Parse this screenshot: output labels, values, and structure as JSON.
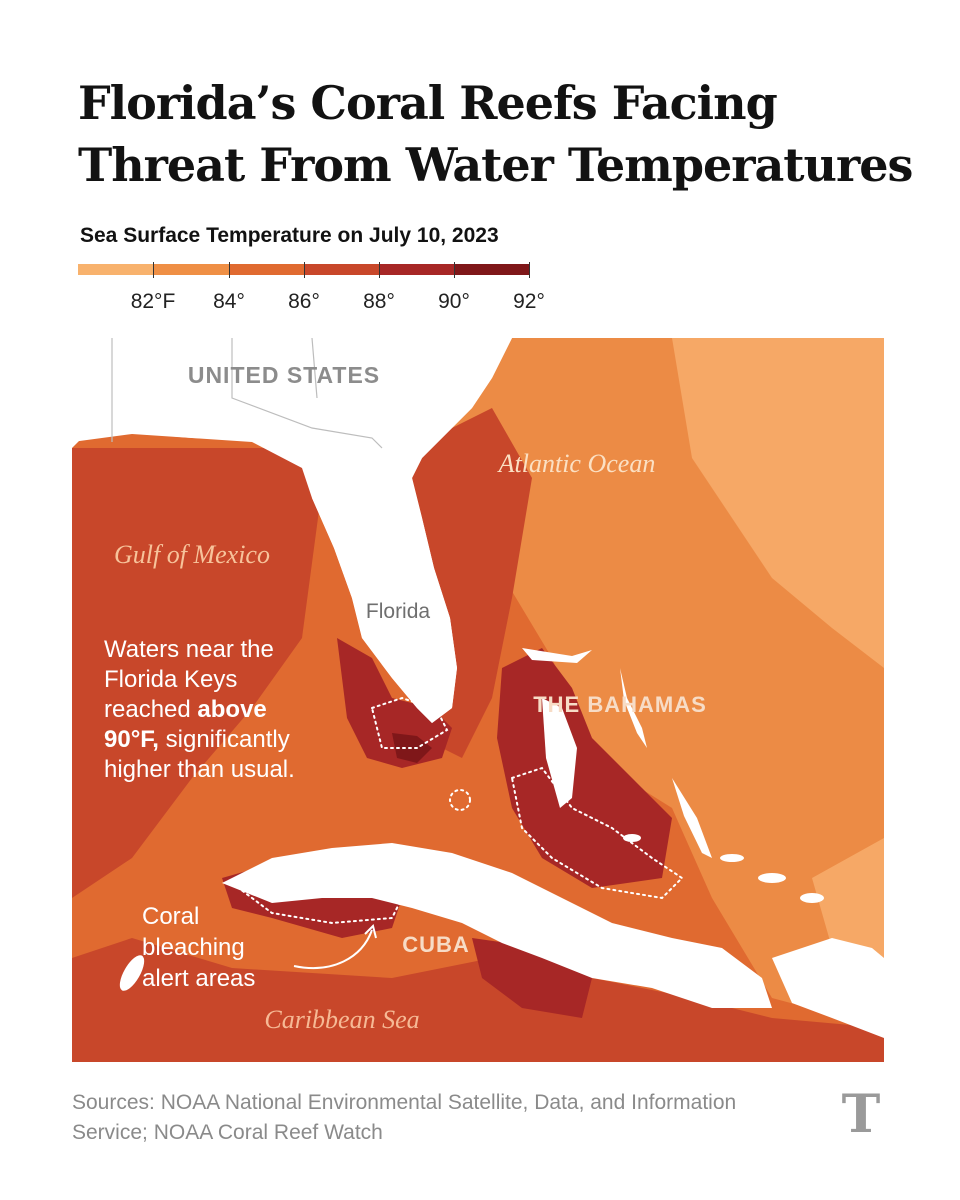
{
  "title": "Florida’s Coral Reefs Facing Threat From Water Temperatures",
  "subtitle": "Sea Surface Temperature on July 10, 2023",
  "legend": {
    "colors": [
      "#f8b26d",
      "#ef8f45",
      "#e06a30",
      "#c8472a",
      "#a72726",
      "#7f1719"
    ],
    "ticks": [
      "82°F",
      "84°",
      "86°",
      "88°",
      "90°",
      "92°"
    ]
  },
  "map": {
    "labels": {
      "united_states": "UNITED STATES",
      "atlantic": "Atlantic Ocean",
      "gulf": "Gulf of Mexico",
      "florida": "Florida",
      "bahamas": "THE BAHAMAS",
      "cuba": "CUBA",
      "caribbean": "Caribbean Sea"
    },
    "annotation_keys": {
      "line1": "Waters near the",
      "line2": "Florida Keys",
      "line3_pre": "reached ",
      "line3_bold": "above",
      "line4_bold": "90°F,",
      "line4_post": " significantly",
      "line5": "higher than usual."
    },
    "annotation_coral": {
      "line1": "Coral",
      "line2": "bleaching",
      "line3": "alert areas"
    },
    "colors": {
      "land": "#ffffff",
      "land_border": "#bdbdbd",
      "atlantic_cool": "#f6a866",
      "atlantic_mid": "#ec8b45",
      "warm": "#e06a30",
      "hot": "#c8472a",
      "very_hot": "#a72726",
      "hottest": "#7f1719",
      "alert_outline": "#ffffff"
    }
  },
  "sources": "Sources: NOAA National Environmental Satellite, Data, and Information Service; NOAA Coral Reef Watch",
  "logo_icon": "nyt-logo-icon"
}
